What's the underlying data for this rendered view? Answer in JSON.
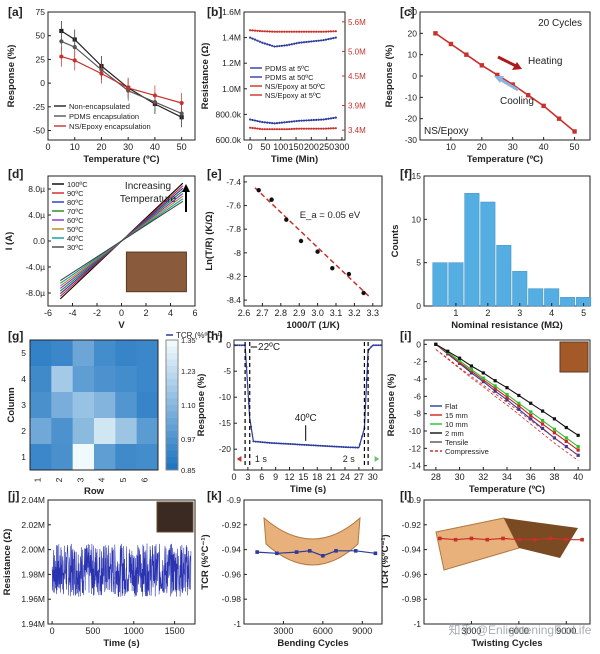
{
  "figure": {
    "watermark": "知乎 @EnlighteningForLife",
    "colors": {
      "black": "#222222",
      "blue": "#2e3a9c",
      "red": "#c8312b",
      "bar": "#55aee2",
      "darkred": "#b0181b",
      "grid": "#dddddd"
    }
  },
  "chart_data": [
    {
      "panel": "a",
      "type": "line",
      "title": "",
      "xlabel": "Temperature (ºC)",
      "ylabel": "Response (%)",
      "xlim": [
        0,
        55
      ],
      "ylim": [
        -60,
        75
      ],
      "xticks": [
        0,
        10,
        20,
        30,
        40,
        50
      ],
      "yticks": [
        -50,
        -25,
        0,
        25,
        50,
        75
      ],
      "series": [
        {
          "name": "Non-encapsulated",
          "color": "#222222",
          "x": [
            5,
            10,
            20,
            30,
            40,
            50
          ],
          "y": [
            55,
            46,
            18,
            -5,
            -22,
            -36
          ]
        },
        {
          "name": "PDMS encapsulation",
          "color": "#555555",
          "x": [
            5,
            10,
            20,
            30,
            40,
            50
          ],
          "y": [
            44,
            38,
            14,
            -8,
            -20,
            -32
          ]
        },
        {
          "name": "NS/Epoxy encapsulation",
          "color": "#c8312b",
          "x": [
            5,
            10,
            20,
            30,
            40,
            50
          ],
          "y": [
            28,
            24,
            10,
            -5,
            -13,
            -21
          ]
        }
      ],
      "legend_position": "bottom-left"
    },
    {
      "panel": "b",
      "type": "line",
      "xlabel": "Time (Min)",
      "ylabel": "Resistance (Ω)",
      "ylabel_right": "",
      "xlim": [
        -20,
        310
      ],
      "xticks": [
        0,
        50,
        100,
        150,
        200,
        250,
        300
      ],
      "ylim_left": [
        600000,
        1600000
      ],
      "yticks_left": [
        {
          "v": 600000,
          "label": "600.0k"
        },
        {
          "v": 800000,
          "label": "800.0k"
        },
        {
          "v": 1000000,
          "label": "1.0M"
        },
        {
          "v": 1200000,
          "label": "1.2M"
        },
        {
          "v": 1400000,
          "label": "1.4M"
        },
        {
          "v": 1600000,
          "label": "1.6M"
        }
      ],
      "ylim_right": [
        3200000,
        5800000
      ],
      "yticks_right": [
        {
          "v": 3400000,
          "label": "3.4M"
        },
        {
          "v": 3900000,
          "label": "3.9M"
        },
        {
          "v": 4500000,
          "label": "4.5M"
        },
        {
          "v": 5000000,
          "label": "5.0M"
        },
        {
          "v": 5600000,
          "label": "5.6M"
        }
      ],
      "series": [
        {
          "name": "PDMS at 5ºC",
          "axis": "left",
          "color": "#2e3a9c",
          "x": [
            0,
            40,
            80,
            120,
            160,
            200,
            240,
            280
          ],
          "y": [
            1400000,
            1360000,
            1330000,
            1340000,
            1360000,
            1370000,
            1380000,
            1400000
          ]
        },
        {
          "name": "PDMS at 50ºC",
          "axis": "left",
          "color": "#2e3a9c",
          "x": [
            0,
            40,
            80,
            120,
            160,
            200,
            240,
            280
          ],
          "y": [
            760000,
            740000,
            730000,
            740000,
            750000,
            755000,
            760000,
            775000
          ]
        },
        {
          "name": "NS/Epoxy at 50ºC",
          "axis": "right",
          "color": "#c8312b",
          "x": [
            0,
            40,
            80,
            120,
            160,
            200,
            240,
            280
          ],
          "y": [
            3450000,
            3420000,
            3420000,
            3420000,
            3430000,
            3430000,
            3430000,
            3440000
          ]
        },
        {
          "name": "NS/Epoxy at 5ºC",
          "axis": "right",
          "color": "#c8312b",
          "x": [
            0,
            40,
            80,
            120,
            160,
            200,
            240,
            280
          ],
          "y": [
            5430000,
            5410000,
            5400000,
            5400000,
            5400000,
            5400000,
            5400000,
            5410000
          ]
        }
      ],
      "legend_position": "center-left"
    },
    {
      "panel": "c",
      "type": "line",
      "xlabel": "Temperature (ºC)",
      "ylabel": "Response (%)",
      "xlim": [
        0,
        55
      ],
      "ylim": [
        -30,
        30
      ],
      "xticks": [
        10,
        20,
        30,
        40,
        50
      ],
      "yticks": [
        -30,
        -20,
        -10,
        0,
        10,
        20,
        30
      ],
      "series": [
        {
          "name": "Heating/Cooling",
          "color": "#c8312b",
          "x": [
            5,
            10,
            15,
            20,
            25,
            30,
            35,
            40,
            45,
            50
          ],
          "y": [
            20,
            15,
            10,
            5,
            0.5,
            -4,
            -9,
            -14,
            -20,
            -26
          ]
        }
      ],
      "annotations": [
        "20 Cycles",
        "Heating",
        "Cooling",
        "NS/Epoxy"
      ]
    },
    {
      "panel": "d",
      "type": "line",
      "xlabel": "V",
      "ylabel": "I (A)",
      "xlim": [
        -6,
        6
      ],
      "ylim": [
        -10,
        10
      ],
      "xticks": [
        -6,
        -4,
        -2,
        0,
        2,
        4,
        6
      ],
      "yticks": [
        {
          "v": -8,
          "label": "-8.0µ"
        },
        {
          "v": -4,
          "label": "-4.0µ"
        },
        {
          "v": 0,
          "label": "0.0"
        },
        {
          "v": 4,
          "label": "4.0µ"
        },
        {
          "v": 8,
          "label": "8.0µ"
        }
      ],
      "series": [
        {
          "name": "100ºC",
          "color": "#000000",
          "slope": 1.78
        },
        {
          "name": "90ºC",
          "color": "#d62020",
          "slope": 1.7
        },
        {
          "name": "80ºC",
          "color": "#2233cc",
          "slope": 1.62
        },
        {
          "name": "70ºC",
          "color": "#1a8a1a",
          "slope": 1.54
        },
        {
          "name": "60ºC",
          "color": "#8a2be2",
          "slope": 1.46
        },
        {
          "name": "50ºC",
          "color": "#b8860b",
          "slope": 1.38
        },
        {
          "name": "40ºC",
          "color": "#00a0a0",
          "slope": 1.3
        },
        {
          "name": "30ºC",
          "color": "#444444",
          "slope": 1.22
        }
      ],
      "annotation": "Increasing Temperature"
    },
    {
      "panel": "e",
      "type": "scatter",
      "xlabel": "1000/T (1/K)",
      "ylabel": "Ln(T/R) (K/Ω)",
      "xlim": [
        2.6,
        3.35
      ],
      "ylim": [
        -8.45,
        -7.35
      ],
      "xticks": [
        2.6,
        2.7,
        2.8,
        2.9,
        3.0,
        3.1,
        3.2,
        3.3
      ],
      "yticks": [
        -7.4,
        -7.6,
        -7.8,
        -8.0,
        -8.2,
        -8.4
      ],
      "points": {
        "x": [
          2.68,
          2.75,
          2.83,
          2.91,
          3.0,
          3.08,
          3.17,
          3.25
        ],
        "y": [
          -7.47,
          -7.55,
          -7.72,
          -7.9,
          -7.99,
          -8.13,
          -8.18,
          -8.34
        ]
      },
      "fit": {
        "x": [
          2.66,
          3.28
        ],
        "y": [
          -7.45,
          -8.37
        ]
      },
      "annotation": "E_a = 0.05 eV"
    },
    {
      "panel": "f",
      "type": "bar",
      "xlabel": "Nominal resistance (MΩ)",
      "ylabel": "Counts",
      "xlim": [
        0,
        5.2
      ],
      "ylim": [
        0,
        15
      ],
      "xticks": [
        1,
        2,
        3,
        4,
        5
      ],
      "yticks": [
        0,
        5,
        10,
        15
      ],
      "bin_centers": [
        0.5,
        1.0,
        1.5,
        2.0,
        2.5,
        3.0,
        3.5,
        4.0,
        4.5,
        5.0
      ],
      "values": [
        5,
        5,
        13,
        12,
        7,
        4,
        2,
        2,
        1,
        1
      ]
    },
    {
      "panel": "g",
      "type": "heatmap",
      "xlabel": "Row",
      "ylabel": "Column",
      "colorbar_label": "TCR (%ºC⁻¹)",
      "xticks": [
        1,
        2,
        3,
        4,
        5,
        6
      ],
      "yticks": [
        1,
        2,
        3,
        4,
        5
      ],
      "colorbar_ticks": [
        0.85,
        0.97,
        1.1,
        1.23,
        1.35
      ],
      "values": [
        [
          0.92,
          0.94,
          1.05,
          0.96,
          0.93,
          0.94
        ],
        [
          0.95,
          1.18,
          1.02,
          0.98,
          0.96,
          0.94
        ],
        [
          0.97,
          1.08,
          1.15,
          1.1,
          0.99,
          0.93
        ],
        [
          1.06,
          0.98,
          1.12,
          1.28,
          1.16,
          1.01
        ],
        [
          0.94,
          0.97,
          1.35,
          1.02,
          0.95,
          0.96
        ]
      ]
    },
    {
      "panel": "h",
      "type": "line",
      "xlabel": "Time (s)",
      "ylabel": "Response (%)",
      "xlim": [
        0,
        32
      ],
      "ylim": [
        -24,
        1
      ],
      "xticks": [
        0,
        3,
        6,
        9,
        12,
        15,
        18,
        21,
        24,
        27,
        30
      ],
      "xticks_extra": [
        29,
        32
      ],
      "yticks": [
        0,
        -5,
        -10,
        -15,
        -20
      ],
      "series": [
        {
          "name": "response",
          "color": "#2e3a9c",
          "x": [
            0,
            2.4,
            3.4,
            4.2,
            8,
            12,
            16,
            20,
            24,
            27,
            28.2,
            29.0,
            30,
            32
          ],
          "y": [
            0,
            0,
            -14,
            -18.5,
            -18.8,
            -19,
            -19.2,
            -19.4,
            -19.6,
            -19.7,
            -16,
            -1,
            0,
            0
          ]
        }
      ],
      "annotations": {
        "start": "22ºC",
        "mid": "40ºC",
        "t1": "1 s",
        "t2": "2 s"
      }
    },
    {
      "panel": "i",
      "type": "line",
      "xlabel": "Temperature (ºC)",
      "ylabel": "Response (%)",
      "xlim": [
        27,
        41
      ],
      "ylim": [
        -14.5,
        0.5
      ],
      "xticks": [
        28,
        30,
        32,
        34,
        36,
        38,
        40
      ],
      "yticks": [
        0,
        -2,
        -4,
        -6,
        -8,
        -10,
        -12,
        -14
      ],
      "series": [
        {
          "name": "Flat",
          "color": "#2e3a9c",
          "x": [
            28,
            29,
            30,
            31,
            32,
            33,
            34,
            35,
            36,
            37,
            38,
            39,
            40
          ],
          "y": [
            0,
            -1.1,
            -2.2,
            -3.3,
            -4.3,
            -5.4,
            -6.4,
            -7.5,
            -8.6,
            -9.7,
            -10.8,
            -11.8,
            -12.8
          ]
        },
        {
          "name": "15 mm",
          "color": "#d62020",
          "x": [
            28,
            29,
            30,
            31,
            32,
            33,
            34,
            35,
            36,
            37,
            38,
            39,
            40
          ],
          "y": [
            0,
            -1.0,
            -2.1,
            -3.1,
            -4.1,
            -5.1,
            -6.1,
            -7.1,
            -8.2,
            -9.2,
            -10.2,
            -11.2,
            -12.2
          ]
        },
        {
          "name": "10 mm",
          "color": "#2fbf2f",
          "x": [
            28,
            29,
            30,
            31,
            32,
            33,
            34,
            35,
            36,
            37,
            38,
            39,
            40
          ],
          "y": [
            0,
            -0.9,
            -1.9,
            -2.9,
            -3.9,
            -4.8,
            -5.8,
            -6.8,
            -7.8,
            -8.8,
            -9.8,
            -10.8,
            -11.8
          ]
        },
        {
          "name": "2 mm",
          "color": "#111111",
          "x": [
            28,
            29,
            30,
            31,
            32,
            33,
            34,
            35,
            36,
            37,
            38,
            39,
            40
          ],
          "y": [
            0,
            -0.8,
            -1.6,
            -2.5,
            -3.3,
            -4.2,
            -5.0,
            -5.9,
            -6.8,
            -7.7,
            -8.6,
            -9.6,
            -10.5
          ]
        }
      ],
      "legend_extra": [
        "Tensile",
        "Compressive"
      ]
    },
    {
      "panel": "j",
      "type": "line",
      "xlabel": "Time (s)",
      "ylabel": "Resistance (Ω)",
      "xlim": [
        -50,
        1750
      ],
      "ylim": [
        1940000,
        2040000
      ],
      "xticks": [
        0,
        500,
        1000,
        1500
      ],
      "yticks": [
        {
          "v": 1940000,
          "label": "1.94M"
        },
        {
          "v": 1960000,
          "label": "1.96M"
        },
        {
          "v": 1980000,
          "label": "1.98M"
        },
        {
          "v": 2000000,
          "label": "2.00M"
        },
        {
          "v": 2020000,
          "label": "2.02M"
        },
        {
          "v": 2040000,
          "label": "2.04M"
        }
      ],
      "series": [
        {
          "name": "noise",
          "color": "#2a33b0",
          "mean": 1983000,
          "band": [
            1962000,
            2005000
          ]
        }
      ]
    },
    {
      "panel": "k",
      "type": "line",
      "xlabel": "Bending Cycles",
      "ylabel": "TCR (%ºC⁻¹)",
      "xlim": [
        0,
        10500
      ],
      "ylim": [
        -1.0,
        -0.9
      ],
      "xticks": [
        3000,
        6000,
        9000
      ],
      "yticks": [
        -1.0,
        -0.98,
        -0.96,
        -0.94,
        -0.92,
        -0.9
      ],
      "series": [
        {
          "name": "TCR",
          "color": "#2e3a9c",
          "x": [
            1000,
            2500,
            4000,
            5000,
            6000,
            7000,
            8500,
            10000
          ],
          "y": [
            -0.942,
            -0.943,
            -0.942,
            -0.941,
            -0.945,
            -0.941,
            -0.941,
            -0.943
          ]
        }
      ]
    },
    {
      "panel": "l",
      "type": "line",
      "xlabel": "Twisting Cycles",
      "ylabel": "TCR (%ºC⁻¹)",
      "xlim": [
        0,
        10500
      ],
      "ylim": [
        -1.0,
        -0.9
      ],
      "xticks": [
        3000,
        6000,
        9000
      ],
      "yticks": [
        -1.0,
        -0.98,
        -0.96,
        -0.94,
        -0.92,
        -0.9
      ],
      "series": [
        {
          "name": "TCR",
          "color": "#c8312b",
          "x": [
            1000,
            2000,
            3000,
            4000,
            5000,
            6000,
            7000,
            8000,
            9000,
            10000
          ],
          "y": [
            -0.931,
            -0.932,
            -0.931,
            -0.932,
            -0.931,
            -0.932,
            -0.932,
            -0.931,
            -0.932,
            -0.932
          ]
        }
      ]
    }
  ]
}
